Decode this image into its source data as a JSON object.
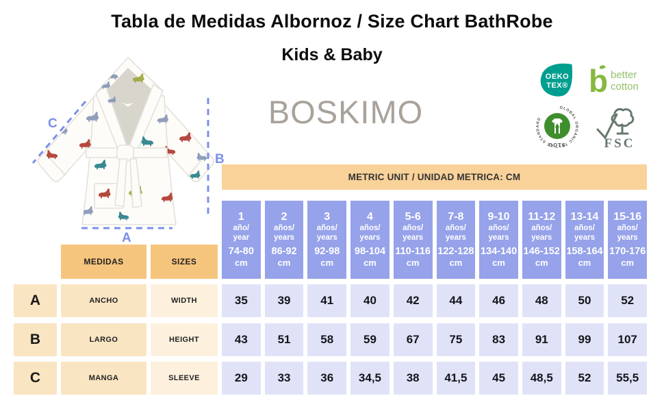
{
  "title": "Tabla de Medidas Albornoz / Size Chart BathRobe",
  "subtitle": "Kids & Baby",
  "brand": "BOSKIMO",
  "diagram": {
    "labels": {
      "width": "A",
      "height": "B",
      "sleeve": "C"
    }
  },
  "certifications": {
    "oeko_tex": {
      "line1": "OEKO",
      "line2": "TEX®"
    },
    "better_cotton": {
      "line1": "better",
      "line2": "cotton"
    },
    "gots": {
      "ring_text": "GLOBAL ORGANIC TEXTILE STANDARD",
      "label": "GOTS"
    },
    "fsc": {
      "label": "FSC"
    }
  },
  "table": {
    "unit_banner": "METRIC UNIT / UNIDAD METRICA: CM",
    "left_headers": {
      "medidas": "MEDIDAS",
      "sizes": "SIZES"
    },
    "age_columns": [
      {
        "age": "1",
        "label_es": "año/",
        "label_en": "year",
        "range": "74-80",
        "unit": "cm"
      },
      {
        "age": "2",
        "label_es": "años/",
        "label_en": "years",
        "range": "86-92",
        "unit": "cm"
      },
      {
        "age": "3",
        "label_es": "años/",
        "label_en": "years",
        "range": "92-98",
        "unit": "cm"
      },
      {
        "age": "4",
        "label_es": "años/",
        "label_en": "years",
        "range": "98-104",
        "unit": "cm"
      },
      {
        "age": "5-6",
        "label_es": "años/",
        "label_en": "years",
        "range": "110-116",
        "unit": "cm"
      },
      {
        "age": "7-8",
        "label_es": "años/",
        "label_en": "years",
        "range": "122-128",
        "unit": "cm"
      },
      {
        "age": "9-10",
        "label_es": "años/",
        "label_en": "years",
        "range": "134-140",
        "unit": "cm"
      },
      {
        "age": "11-12",
        "label_es": "años/",
        "label_en": "years",
        "range": "146-152",
        "unit": "cm"
      },
      {
        "age": "13-14",
        "label_es": "años/",
        "label_en": "years",
        "range": "158-164",
        "unit": "cm"
      },
      {
        "age": "15-16",
        "label_es": "años/",
        "label_en": "years",
        "range": "170-176",
        "unit": "cm"
      }
    ],
    "rows": [
      {
        "letter": "A",
        "medida": "ANCHO",
        "size": "WIDTH",
        "values": [
          "35",
          "39",
          "41",
          "40",
          "42",
          "44",
          "46",
          "48",
          "50",
          "52"
        ]
      },
      {
        "letter": "B",
        "medida": "LARGO",
        "size": "HEIGHT",
        "values": [
          "43",
          "51",
          "58",
          "59",
          "67",
          "75",
          "83",
          "91",
          "99",
          "107"
        ]
      },
      {
        "letter": "C",
        "medida": "MANGA",
        "size": "SLEEVE",
        "values": [
          "29",
          "33",
          "36",
          "34,5",
          "38",
          "41,5",
          "45",
          "48,5",
          "52",
          "55,5"
        ]
      }
    ]
  },
  "chart_data": {
    "type": "table",
    "title": "Tabla de Medidas Albornoz / Size Chart BathRobe — Kids & Baby",
    "unit": "cm",
    "columns": [
      "1 año/year 74-80 cm",
      "2 años/years 86-92 cm",
      "3 años/years 92-98 cm",
      "4 años/years 98-104 cm",
      "5-6 años/years 110-116 cm",
      "7-8 años/years 122-128 cm",
      "9-10 años/years 134-140 cm",
      "11-12 años/years 146-152 cm",
      "13-14 años/years 158-164 cm",
      "15-16 años/years 170-176 cm"
    ],
    "rows": [
      {
        "key": "A",
        "label_es": "ANCHO",
        "label_en": "WIDTH",
        "values": [
          35,
          39,
          41,
          40,
          42,
          44,
          46,
          48,
          50,
          52
        ]
      },
      {
        "key": "B",
        "label_es": "LARGO",
        "label_en": "HEIGHT",
        "values": [
          43,
          51,
          58,
          59,
          67,
          75,
          83,
          91,
          99,
          107
        ]
      },
      {
        "key": "C",
        "label_es": "MANGA",
        "label_en": "SLEEVE",
        "values": [
          29,
          33,
          36,
          34.5,
          38,
          41.5,
          45,
          48.5,
          52,
          55.5
        ]
      }
    ]
  },
  "colors": {
    "accent_periwinkle": "#7B8FE8",
    "age_header_bg": "#96A2E9",
    "value_cell_bg": "#E0E3F8",
    "banner_bg": "#F9D29A",
    "left_header_bg": "#F6C57D",
    "row_label_bg": "#FAE5C2",
    "size_label_bg": "#FDF1DE",
    "brand_gray": "#A9A29A",
    "oeko_teal": "#009E8F",
    "better_cotton_green": "#86B93F",
    "gots_green": "#3F8E2D",
    "fsc_gray_green": "#66786B",
    "dino_red": "#B03A2E",
    "dino_teal": "#2A7F8A",
    "dino_blue": "#8697B5",
    "dino_green": "#9DA83C"
  }
}
